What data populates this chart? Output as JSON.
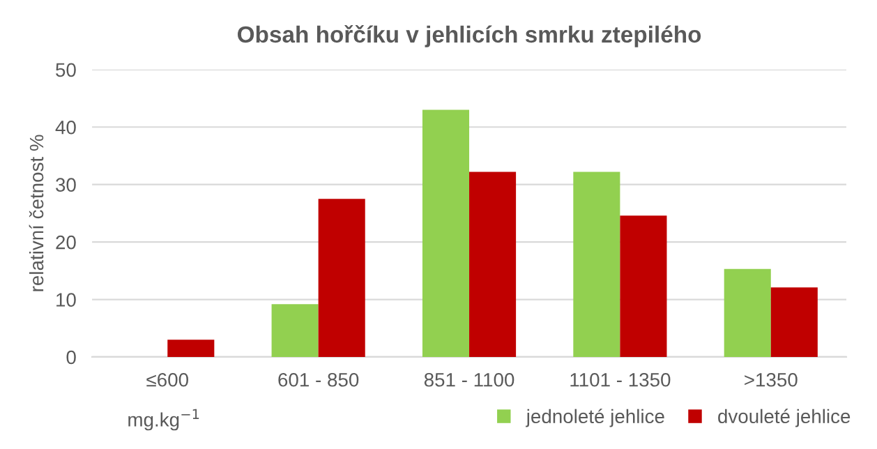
{
  "chart_data": {
    "type": "bar",
    "title": "Obsah hořčíku v jehlicích smrku ztepilého",
    "xlabel": "mg.kg$^{−1}$",
    "ylabel": "relativní četnost %",
    "categories": [
      "≤600",
      "601 - 850",
      "851 - 1100",
      "1101 - 1350",
      ">1350"
    ],
    "series": [
      {
        "name": "jednoleté jehlice",
        "color": "#92d050",
        "values": [
          0,
          9.2,
          43,
          32.2,
          15.3
        ]
      },
      {
        "name": "dvouleté jehlice",
        "color": "#c00000",
        "values": [
          3,
          27.5,
          32.2,
          24.6,
          12.1
        ]
      }
    ],
    "ylim": [
      0,
      50
    ],
    "yticks": [
      0,
      10,
      20,
      30,
      40,
      50
    ],
    "grid": "y",
    "legend": "bottom right"
  }
}
